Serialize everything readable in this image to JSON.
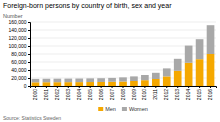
{
  "chart_data": {
    "type": "bar",
    "title": "Foreign-born persons by country of birth, sex and year",
    "ylabel": "Number",
    "source": "Source: Statistics Sweden",
    "categories": [
      "2000",
      "2001",
      "2002",
      "2003",
      "2004",
      "2005",
      "2006",
      "2007",
      "2008",
      "2009",
      "2010",
      "2011",
      "2012",
      "2013",
      "2014",
      "2015",
      "2016"
    ],
    "series": [
      {
        "name": "Men",
        "color": "#f5a800",
        "values": [
          9200,
          9400,
          9500,
          9600,
          9700,
          9900,
          10100,
          10500,
          11200,
          12500,
          14500,
          17500,
          24000,
          38000,
          58000,
          67000,
          80000
        ]
      },
      {
        "name": "Women",
        "color": "#a8a8a8",
        "values": [
          8500,
          8700,
          8800,
          8900,
          9000,
          9200,
          9400,
          9700,
          10400,
          11500,
          13000,
          15500,
          20000,
          30000,
          43000,
          50000,
          72000
        ]
      }
    ],
    "stacked": true,
    "ylim": [
      0,
      160000
    ],
    "yticks": [
      0,
      {
        "value": 20000,
        "label": "20,000"
      },
      {
        "value": 40000,
        "label": "40,000"
      },
      {
        "value": 60000,
        "label": "60,000"
      },
      {
        "value": 80000,
        "label": "80,000"
      },
      {
        "value": 100000,
        "label": "100,000"
      },
      {
        "value": 120000,
        "label": "120,000"
      },
      {
        "value": 140000,
        "label": "140,000"
      },
      {
        "value": 160000,
        "label": "160,000"
      }
    ],
    "grid": true,
    "legend": "bottom"
  }
}
